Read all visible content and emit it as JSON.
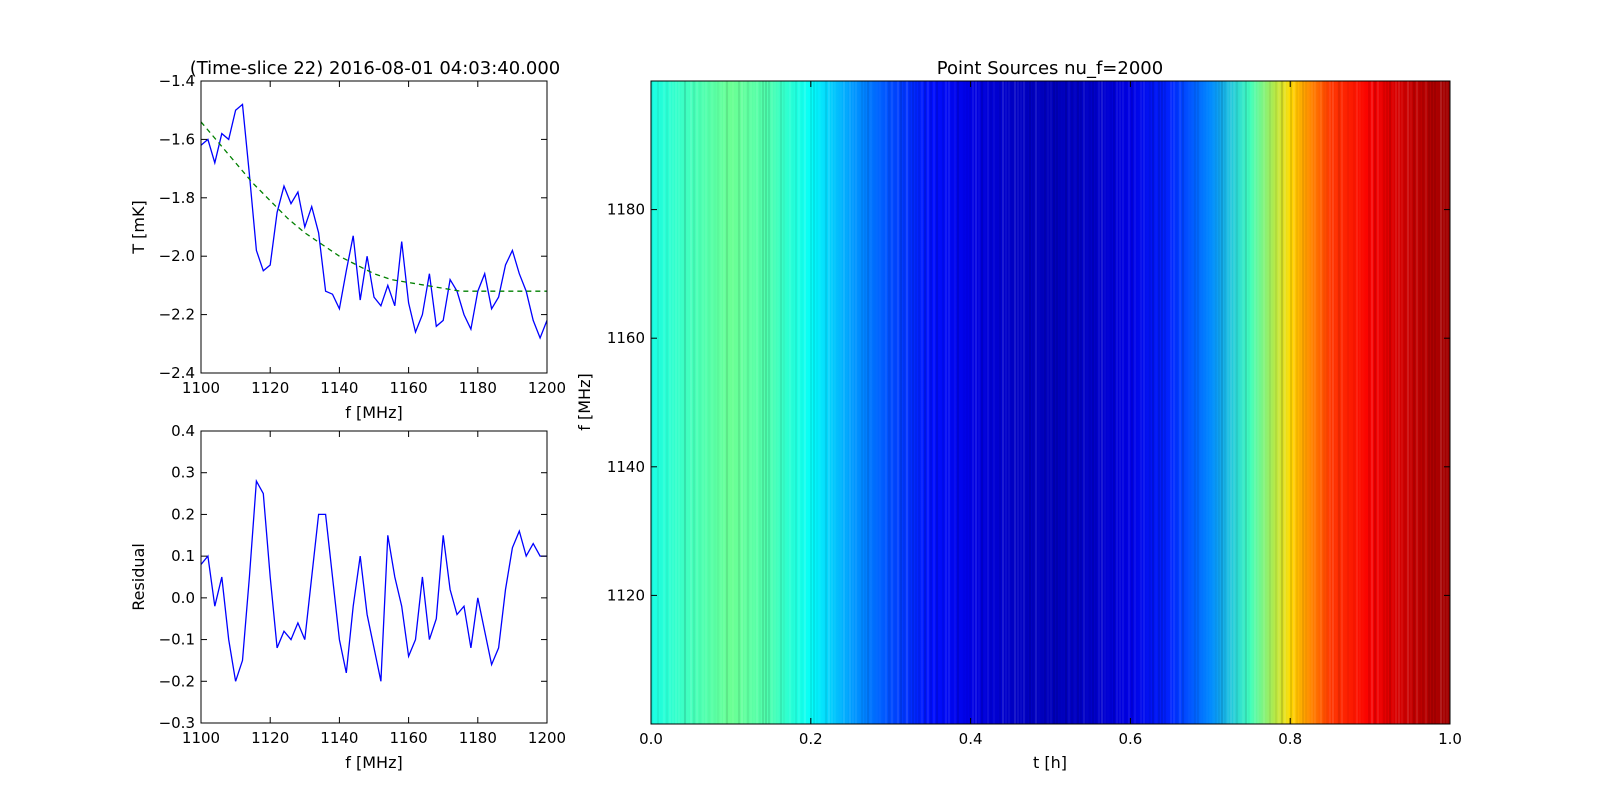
{
  "chart_data": [
    {
      "type": "line",
      "title": "(Time-slice 22) 2016-08-01 04:03:40.000",
      "xlabel": "f [MHz]",
      "ylabel": "T [mK]",
      "xlim": [
        1100,
        1200
      ],
      "ylim": [
        -2.4,
        -1.4
      ],
      "xticks": [
        "1100",
        "1120",
        "1140",
        "1160",
        "1180",
        "1200"
      ],
      "yticks": [
        "−1.4",
        "−1.6",
        "−1.8",
        "−2.0",
        "−2.2",
        "−2.4"
      ],
      "grid": false,
      "series": [
        {
          "style": "solid",
          "color": "#0000ff",
          "x": [
            1100,
            1102,
            1104,
            1106,
            1108,
            1110,
            1112,
            1114,
            1116,
            1118,
            1120,
            1122,
            1124,
            1126,
            1128,
            1130,
            1132,
            1134,
            1136,
            1138,
            1140,
            1142,
            1144,
            1146,
            1148,
            1150,
            1152,
            1154,
            1156,
            1158,
            1160,
            1162,
            1164,
            1166,
            1168,
            1170,
            1172,
            1174,
            1176,
            1178,
            1180,
            1182,
            1184,
            1186,
            1188,
            1190,
            1192,
            1194,
            1196,
            1198,
            1200
          ],
          "y": [
            -1.62,
            -1.6,
            -1.68,
            -1.58,
            -1.6,
            -1.5,
            -1.48,
            -1.72,
            -1.98,
            -2.05,
            -2.03,
            -1.85,
            -1.76,
            -1.82,
            -1.78,
            -1.9,
            -1.83,
            -1.92,
            -2.12,
            -2.13,
            -2.18,
            -2.05,
            -1.93,
            -2.15,
            -2.0,
            -2.14,
            -2.17,
            -2.1,
            -2.17,
            -1.95,
            -2.16,
            -2.26,
            -2.2,
            -2.06,
            -2.24,
            -2.22,
            -2.08,
            -2.12,
            -2.2,
            -2.25,
            -2.12,
            -2.06,
            -2.18,
            -2.14,
            -2.03,
            -1.98,
            -2.06,
            -2.12,
            -2.22,
            -2.28,
            -2.22
          ]
        },
        {
          "style": "dashed",
          "color": "#008000",
          "x": [
            1100,
            1105,
            1110,
            1115,
            1120,
            1125,
            1130,
            1135,
            1140,
            1145,
            1150,
            1155,
            1160,
            1165,
            1170,
            1175,
            1180,
            1185,
            1190,
            1195,
            1200
          ],
          "y": [
            -1.54,
            -1.61,
            -1.68,
            -1.75,
            -1.81,
            -1.87,
            -1.92,
            -1.96,
            -2.0,
            -2.03,
            -2.06,
            -2.08,
            -2.09,
            -2.1,
            -2.11,
            -2.12,
            -2.12,
            -2.12,
            -2.12,
            -2.12,
            -2.12
          ]
        }
      ]
    },
    {
      "type": "line",
      "xlabel": "f [MHz]",
      "ylabel": "Residual",
      "xlim": [
        1100,
        1200
      ],
      "ylim": [
        -0.3,
        0.4
      ],
      "xticks": [
        "1100",
        "1120",
        "1140",
        "1160",
        "1180",
        "1200"
      ],
      "yticks": [
        "0.4",
        "0.3",
        "0.2",
        "0.1",
        "0.0",
        "−0.1",
        "−0.2",
        "−0.3"
      ],
      "grid": false,
      "series": [
        {
          "style": "solid",
          "color": "#0000ff",
          "x": [
            1100,
            1102,
            1104,
            1106,
            1108,
            1110,
            1112,
            1114,
            1116,
            1118,
            1120,
            1122,
            1124,
            1126,
            1128,
            1130,
            1132,
            1134,
            1136,
            1138,
            1140,
            1142,
            1144,
            1146,
            1148,
            1150,
            1152,
            1154,
            1156,
            1158,
            1160,
            1162,
            1164,
            1166,
            1168,
            1170,
            1172,
            1174,
            1176,
            1178,
            1180,
            1182,
            1184,
            1186,
            1188,
            1190,
            1192,
            1194,
            1196,
            1198,
            1200
          ],
          "y": [
            0.08,
            0.1,
            -0.02,
            0.05,
            -0.1,
            -0.2,
            -0.15,
            0.05,
            0.28,
            0.25,
            0.05,
            -0.12,
            -0.08,
            -0.1,
            -0.06,
            -0.1,
            0.05,
            0.2,
            0.2,
            0.05,
            -0.1,
            -0.18,
            -0.02,
            0.1,
            -0.04,
            -0.12,
            -0.2,
            0.15,
            0.05,
            -0.02,
            -0.14,
            -0.1,
            0.05,
            -0.1,
            -0.05,
            0.15,
            0.02,
            -0.04,
            -0.02,
            -0.12,
            0.0,
            -0.08,
            -0.16,
            -0.12,
            0.02,
            0.12,
            0.16,
            0.1,
            0.13,
            0.1,
            0.1
          ]
        }
      ]
    },
    {
      "type": "heatmap",
      "title": "Point Sources nu_f=2000",
      "xlabel": "t [h]",
      "ylabel": "f [MHz]",
      "xlim": [
        0.0,
        1.0
      ],
      "ylim": [
        1100,
        1200
      ],
      "xticks": [
        "0.0",
        "0.2",
        "0.4",
        "0.6",
        "0.8",
        "1.0"
      ],
      "yticks": [
        "1120",
        "1140",
        "1160",
        "1180"
      ],
      "colormap": "jet",
      "colormap_stops": [
        "#00007f",
        "#0000ff",
        "#007fff",
        "#00ffff",
        "#7fff7f",
        "#ffff00",
        "#ff7f00",
        "#ff0000",
        "#7f0000"
      ],
      "column_profile": {
        "t": [
          0.0,
          0.05,
          0.1,
          0.15,
          0.2,
          0.25,
          0.3,
          0.35,
          0.4,
          0.45,
          0.5,
          0.55,
          0.6,
          0.65,
          0.7,
          0.75,
          0.8,
          0.85,
          0.9,
          0.95,
          1.0
        ],
        "level": [
          0.4,
          0.44,
          0.48,
          0.45,
          0.38,
          0.28,
          0.2,
          0.14,
          0.1,
          0.07,
          0.06,
          0.07,
          0.1,
          0.16,
          0.26,
          0.44,
          0.66,
          0.82,
          0.88,
          0.93,
          0.97
        ]
      }
    }
  ]
}
